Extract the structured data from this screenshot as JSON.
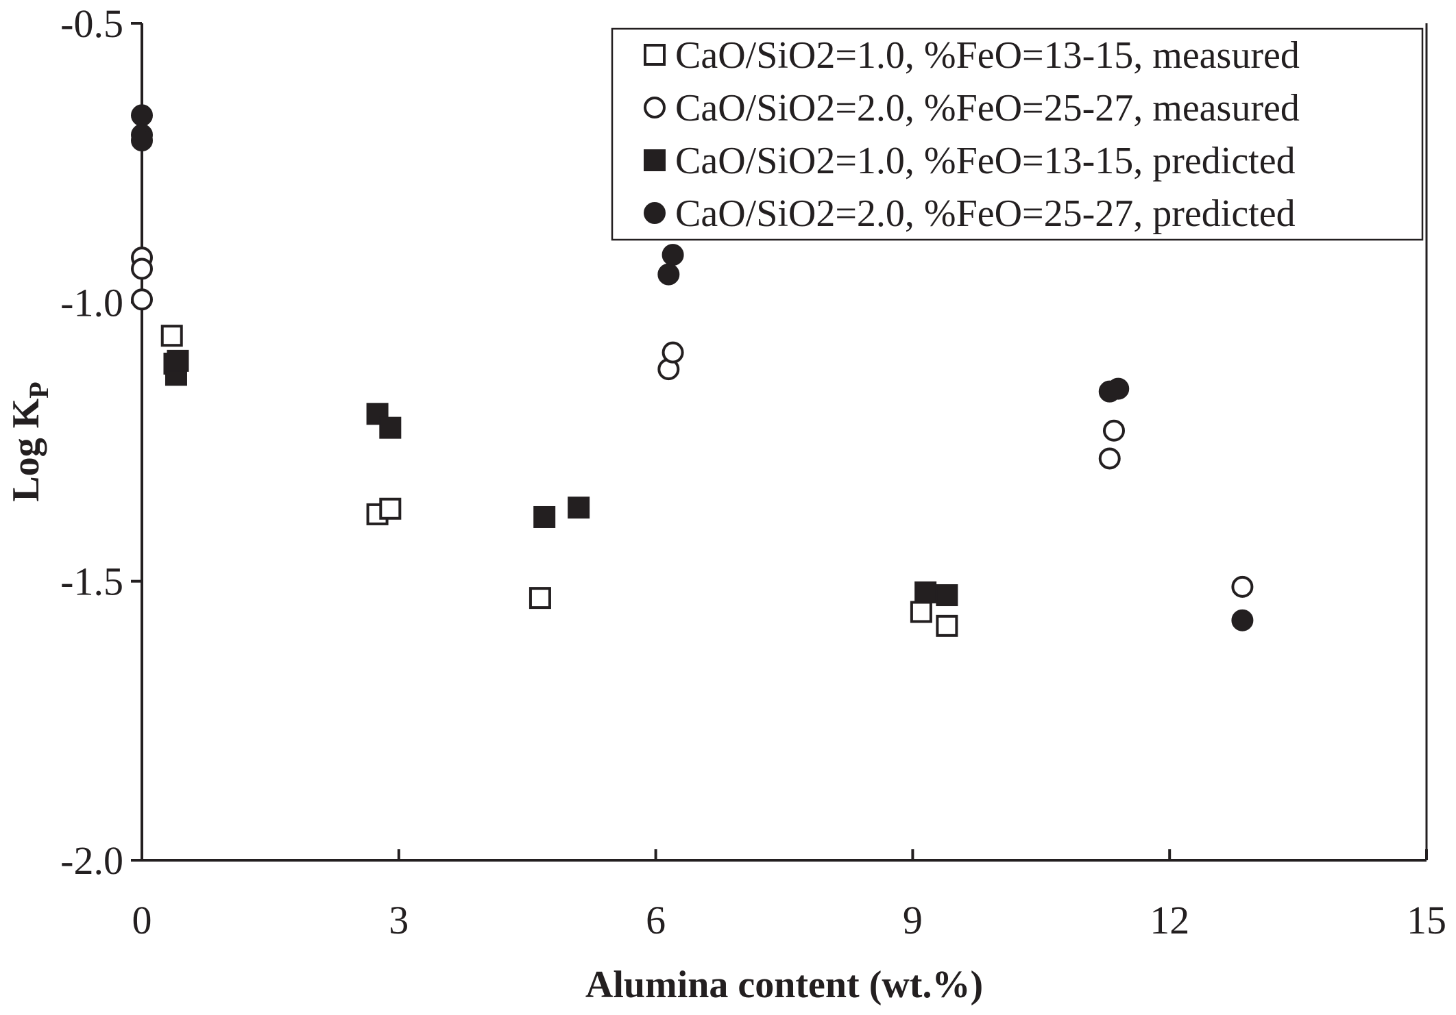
{
  "chart_data": {
    "type": "scatter",
    "title": "",
    "xlabel": "Alumina content (wt.%)",
    "ylabel_main": "Log K",
    "ylabel_sub": "P",
    "xlim": [
      0,
      15
    ],
    "ylim": [
      -2.0,
      -0.5
    ],
    "xticks": [
      "0",
      "3",
      "6",
      "9",
      "12",
      "15"
    ],
    "yticks": [
      "-0.5",
      "-1.0",
      "-1.5",
      "-2.0"
    ],
    "grid": false,
    "legend_position": "top-right",
    "series": [
      {
        "name": "CaO/SiO2=1.0, %FeO=13-15, measured",
        "marker": "square-open",
        "points": [
          [
            0.35,
            -1.06
          ],
          [
            2.75,
            -1.38
          ],
          [
            2.9,
            -1.37
          ],
          [
            4.65,
            -1.53
          ],
          [
            9.1,
            -1.555
          ],
          [
            9.4,
            -1.58
          ]
        ]
      },
      {
        "name": "CaO/SiO2=2.0, %FeO=25-27, measured",
        "marker": "circle-open",
        "points": [
          [
            0.0,
            -0.92
          ],
          [
            0.0,
            -0.94
          ],
          [
            0.0,
            -0.995
          ],
          [
            6.15,
            -1.12
          ],
          [
            6.2,
            -1.09
          ],
          [
            11.3,
            -1.28
          ],
          [
            11.35,
            -1.23
          ],
          [
            12.85,
            -1.51
          ]
        ]
      },
      {
        "name": "CaO/SiO2=1.0, %FeO=13-15, predicted",
        "marker": "square-filled",
        "points": [
          [
            0.38,
            -1.11
          ],
          [
            0.4,
            -1.13
          ],
          [
            0.42,
            -1.105
          ],
          [
            2.75,
            -1.2
          ],
          [
            2.9,
            -1.225
          ],
          [
            4.7,
            -1.385
          ],
          [
            5.1,
            -1.368
          ],
          [
            9.15,
            -1.52
          ],
          [
            9.4,
            -1.525
          ]
        ]
      },
      {
        "name": "CaO/SiO2=2.0, %FeO=25-27, predicted",
        "marker": "circle-filled",
        "points": [
          [
            0.0,
            -0.665
          ],
          [
            0.0,
            -0.7
          ],
          [
            0.0,
            -0.71
          ],
          [
            6.15,
            -0.95
          ],
          [
            6.2,
            -0.915
          ],
          [
            11.3,
            -1.16
          ],
          [
            11.4,
            -1.155
          ],
          [
            12.85,
            -1.57
          ]
        ]
      }
    ]
  }
}
